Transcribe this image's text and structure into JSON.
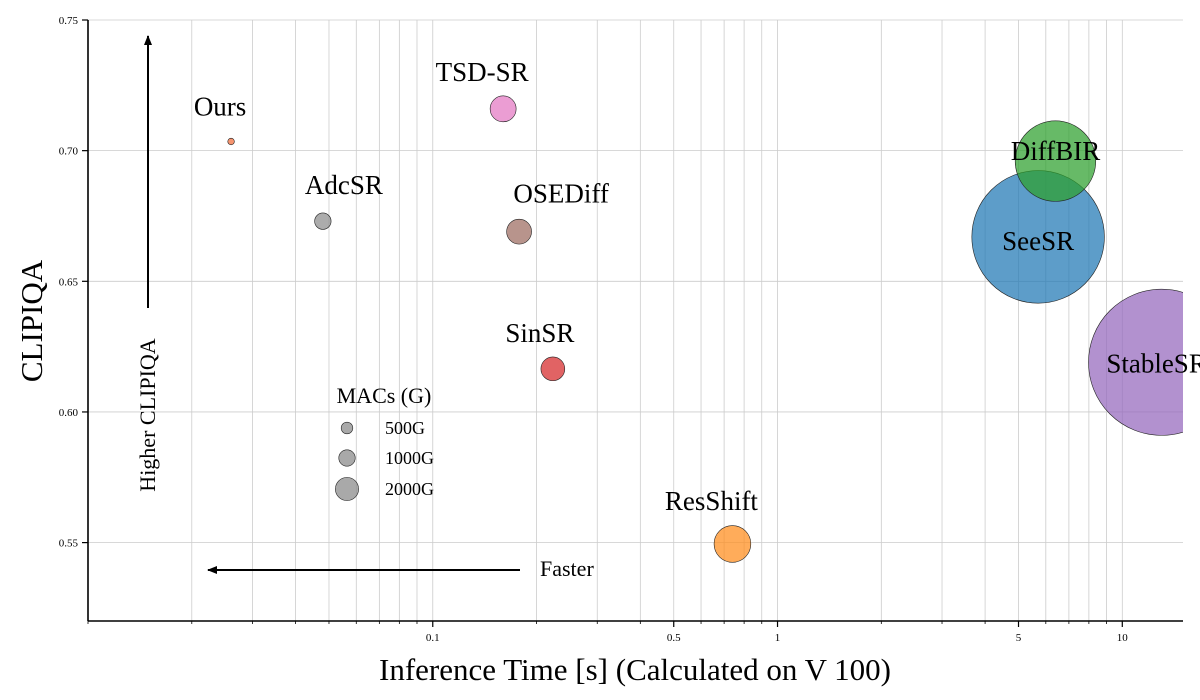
{
  "chart_data": {
    "type": "scatter",
    "title": "",
    "xlabel": "Inference Time [s] (Calculated on V 100)",
    "ylabel": "CLIPIQA",
    "x_scale": "log",
    "xlim": [
      0.01,
      15
    ],
    "ylim": [
      0.52,
      0.75
    ],
    "x_ticks": [
      0.1,
      0.5,
      1,
      5,
      10
    ],
    "x_tick_labels": [
      "0.1",
      "0.5",
      "1",
      "5",
      "10"
    ],
    "y_ticks": [
      0.55,
      0.6,
      0.65,
      0.7,
      0.75
    ],
    "y_tick_labels": [
      "0.55",
      "0.60",
      "0.65",
      "0.70",
      "0.75"
    ],
    "grid": true,
    "size_encoding": "MACs (G)",
    "points": [
      {
        "name": "Ours",
        "x": 0.026,
        "y": 0.7035,
        "macs": 160,
        "color": "#F26B38",
        "label_color": "#E8501A"
      },
      {
        "name": "TSD-SR",
        "x": 0.16,
        "y": 0.716,
        "macs": 2500,
        "color": "#E377C2",
        "label_color": "#000000"
      },
      {
        "name": "AdcSR",
        "x": 0.048,
        "y": 0.673,
        "macs": 1000,
        "color": "#8C8C8C",
        "label_color": "#000000"
      },
      {
        "name": "OSEDiff",
        "x": 0.178,
        "y": 0.669,
        "macs": 2300,
        "color": "#9C6B60",
        "label_color": "#000000"
      },
      {
        "name": "SinSR",
        "x": 0.223,
        "y": 0.6165,
        "macs": 2100,
        "color": "#D62728",
        "label_color": "#000000"
      },
      {
        "name": "ResShift",
        "x": 0.74,
        "y": 0.5495,
        "macs": 5000,
        "color": "#FF8C1A",
        "label_color": "#000000"
      },
      {
        "name": "DiffBIR",
        "x": 6.4,
        "y": 0.696,
        "macs": 24000,
        "color": "#2CA02C",
        "label_color": "#000000"
      },
      {
        "name": "SeeSR",
        "x": 5.7,
        "y": 0.667,
        "macs": 65000,
        "color": "#1F77B4",
        "label_color": "#000000"
      },
      {
        "name": "StableSR",
        "x": 13.0,
        "y": 0.619,
        "macs": 79000,
        "color": "#9467BD",
        "label_color": "#000000"
      }
    ],
    "legend": {
      "title": "MACs (G)",
      "placement": "center-left",
      "entries": [
        {
          "label": "500G",
          "macs": 500
        },
        {
          "label": "1000G",
          "macs": 1000
        },
        {
          "label": "2000G",
          "macs": 2000
        }
      ]
    },
    "annotations": [
      {
        "text": "Higher CLIPIQA",
        "direction": "up"
      },
      {
        "text": "Faster",
        "direction": "left"
      }
    ]
  }
}
